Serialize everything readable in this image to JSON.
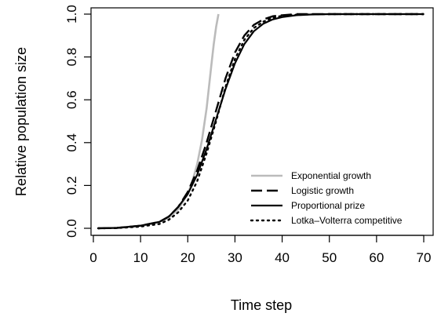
{
  "chart_data": {
    "type": "line",
    "xlabel": "Time step",
    "ylabel": "Relative population size",
    "xlim": [
      1,
      70
    ],
    "ylim": [
      0,
      1
    ],
    "x_ticks": [
      0,
      10,
      20,
      30,
      40,
      50,
      60,
      70
    ],
    "y_ticks": [
      0.0,
      0.2,
      0.4,
      0.6,
      0.8,
      1.0
    ],
    "y_tick_labels": [
      "0.0",
      "0.2",
      "0.4",
      "0.6",
      "0.8",
      "1.0"
    ],
    "grid": false,
    "legend_position": "bottom-right",
    "series": [
      {
        "name": "Exponential growth",
        "color": "#bbbbbb",
        "dash": "solid",
        "x": [
          1,
          5,
          10,
          14,
          16,
          18,
          20,
          21,
          22,
          23,
          24,
          25,
          25.5,
          26,
          26.5
        ],
        "y": [
          0.0,
          0.002,
          0.012,
          0.03,
          0.05,
          0.09,
          0.16,
          0.22,
          0.3,
          0.41,
          0.56,
          0.76,
          0.86,
          0.94,
          1.0
        ]
      },
      {
        "name": "Logistic growth",
        "color": "#000000",
        "dash": "long-dash",
        "x": [
          1,
          5,
          10,
          14,
          16,
          18,
          20,
          22,
          24,
          26,
          28,
          30,
          32,
          34,
          36,
          38,
          40,
          43,
          46,
          50,
          55,
          60,
          65,
          70
        ],
        "y": [
          0.0,
          0.002,
          0.012,
          0.03,
          0.055,
          0.1,
          0.17,
          0.27,
          0.4,
          0.55,
          0.7,
          0.82,
          0.9,
          0.95,
          0.975,
          0.99,
          0.995,
          1.0,
          1.0,
          1.0,
          1.0,
          1.0,
          1.0,
          1.0
        ]
      },
      {
        "name": "Proportional prize",
        "color": "#000000",
        "dash": "solid",
        "x": [
          1,
          5,
          10,
          14,
          16,
          18,
          20,
          22,
          24,
          26,
          28,
          30,
          32,
          34,
          36,
          38,
          40,
          43,
          46,
          50,
          55,
          60,
          65,
          70
        ],
        "y": [
          0.0,
          0.002,
          0.012,
          0.03,
          0.055,
          0.1,
          0.16,
          0.25,
          0.37,
          0.51,
          0.65,
          0.77,
          0.86,
          0.92,
          0.955,
          0.975,
          0.986,
          0.995,
          0.998,
          1.0,
          1.0,
          1.0,
          1.0,
          1.0
        ]
      },
      {
        "name": "Lotka–Volterra competitive",
        "color": "#000000",
        "dash": "dotted",
        "x": [
          1,
          5,
          10,
          14,
          16,
          18,
          20,
          22,
          24,
          26,
          28,
          30,
          32,
          34,
          36,
          38,
          40,
          43,
          46,
          50,
          55,
          60,
          65,
          70
        ],
        "y": [
          0.0,
          0.001,
          0.008,
          0.02,
          0.04,
          0.075,
          0.13,
          0.22,
          0.35,
          0.5,
          0.66,
          0.79,
          0.88,
          0.935,
          0.965,
          0.983,
          0.992,
          0.997,
          0.999,
          1.0,
          1.0,
          1.0,
          1.0,
          1.0
        ]
      }
    ]
  }
}
